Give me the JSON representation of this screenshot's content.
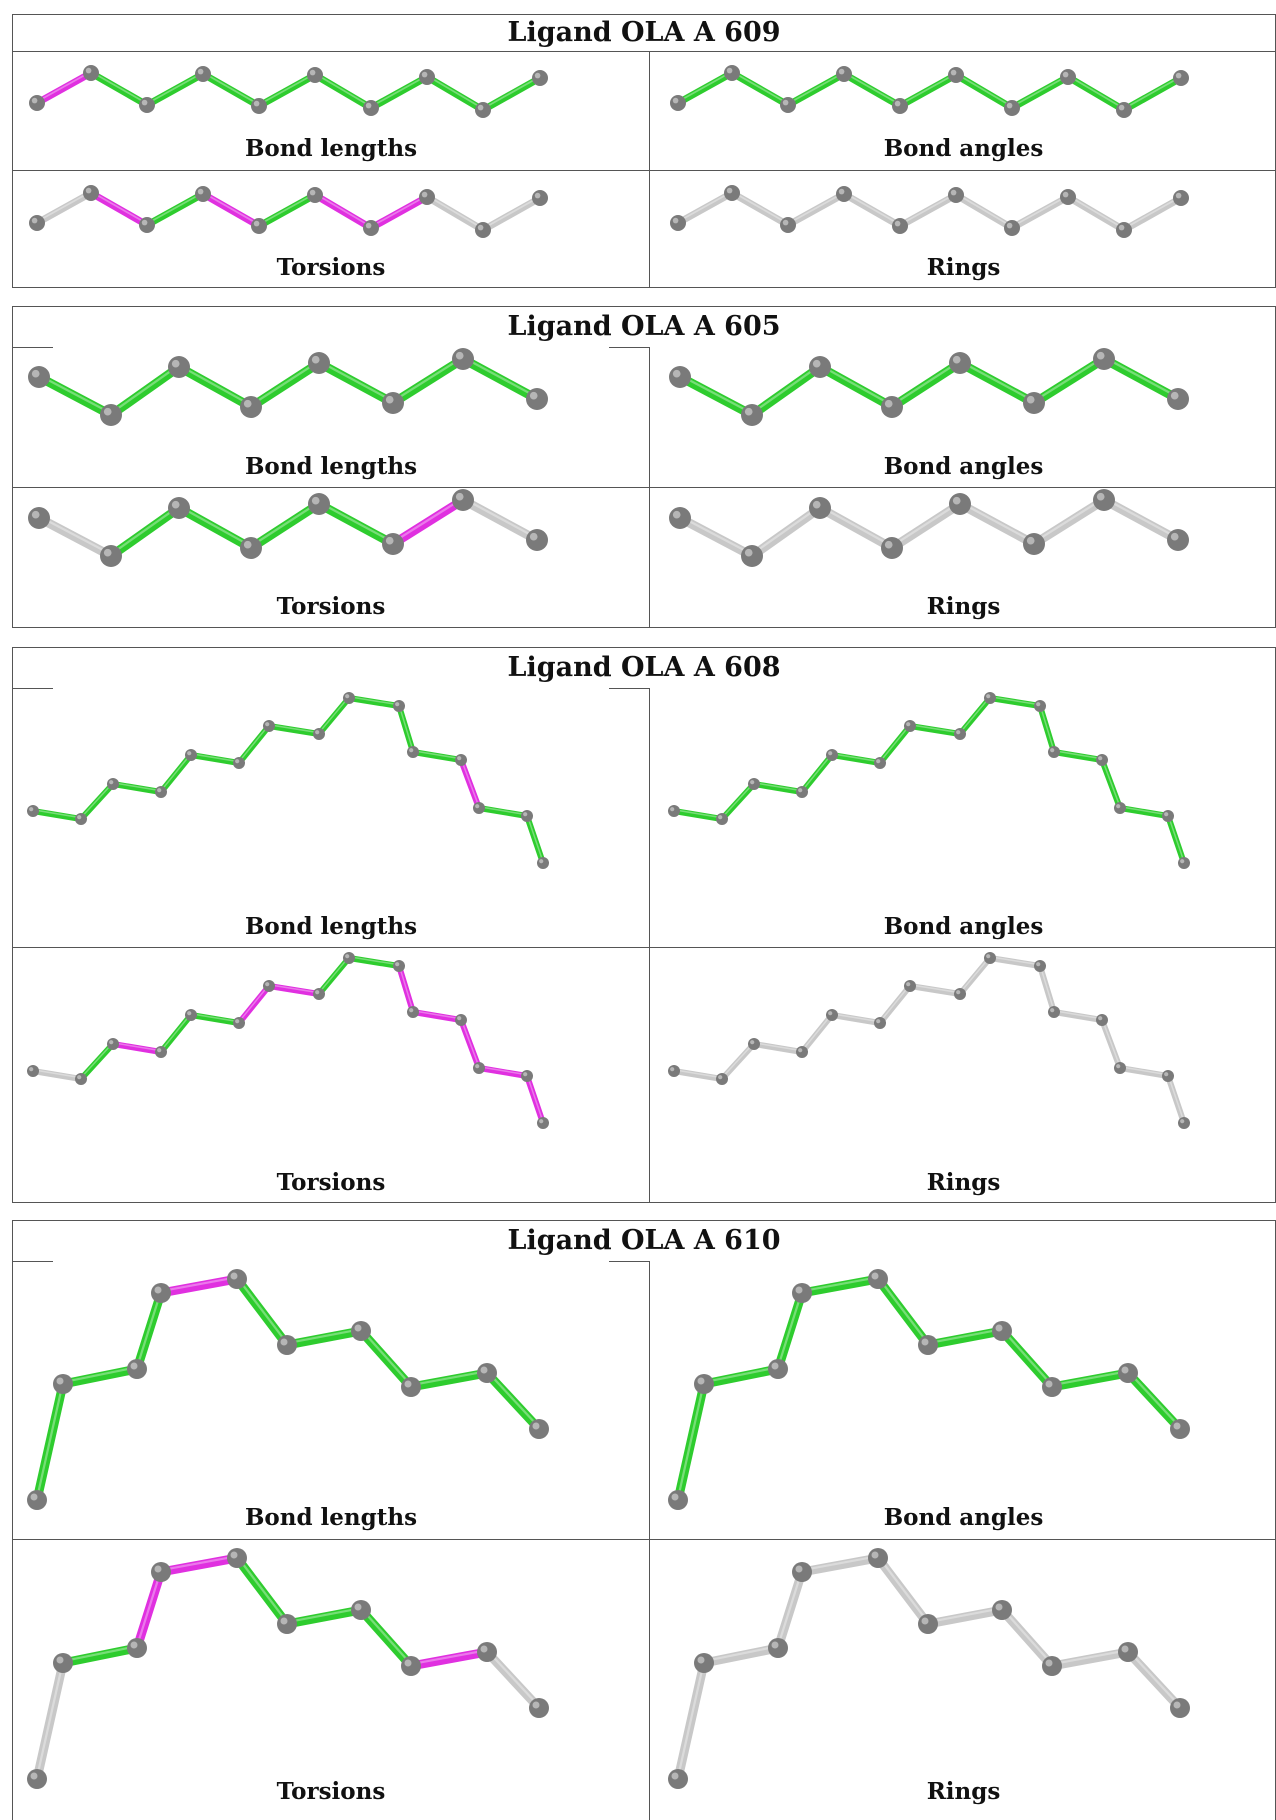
{
  "colors": {
    "ok": "#2ecc2e",
    "outlier": "#e030e0",
    "neutral": "#c8c8c8",
    "atom": "#7a7a7a",
    "border": "#555555"
  },
  "ligands": [
    {
      "title": "Ligand OLA A 609",
      "panels": {
        "bond_lengths": {
          "label": "Bond lengths",
          "bonds": [
            "outlier",
            "ok",
            "ok",
            "ok",
            "ok",
            "ok",
            "ok",
            "ok",
            "ok"
          ]
        },
        "bond_angles": {
          "label": "Bond angles",
          "bonds": [
            "ok",
            "ok",
            "ok",
            "ok",
            "ok",
            "ok",
            "ok",
            "ok",
            "ok"
          ]
        },
        "torsions": {
          "label": "Torsions",
          "bonds": [
            "neutral",
            "outlier",
            "ok",
            "outlier",
            "ok",
            "outlier",
            "outlier",
            "neutral",
            "neutral"
          ]
        },
        "rings": {
          "label": "Rings",
          "bonds": [
            "neutral",
            "neutral",
            "neutral",
            "neutral",
            "neutral",
            "neutral",
            "neutral",
            "neutral",
            "neutral"
          ]
        }
      }
    },
    {
      "title": "Ligand OLA A 605",
      "panels": {
        "bond_lengths": {
          "label": "Bond lengths",
          "bonds": [
            "ok",
            "ok",
            "ok",
            "ok",
            "ok",
            "ok",
            "ok"
          ]
        },
        "bond_angles": {
          "label": "Bond angles",
          "bonds": [
            "ok",
            "ok",
            "ok",
            "ok",
            "ok",
            "ok",
            "ok"
          ]
        },
        "torsions": {
          "label": "Torsions",
          "bonds": [
            "neutral",
            "ok",
            "ok",
            "ok",
            "ok",
            "outlier",
            "neutral"
          ]
        },
        "rings": {
          "label": "Rings",
          "bonds": [
            "neutral",
            "neutral",
            "neutral",
            "neutral",
            "neutral",
            "neutral",
            "neutral"
          ]
        }
      }
    },
    {
      "title": "Ligand OLA A 608",
      "panels": {
        "bond_lengths": {
          "label": "Bond lengths",
          "bonds": [
            "ok",
            "ok",
            "ok",
            "ok",
            "ok",
            "ok",
            "ok",
            "ok",
            "ok",
            "ok",
            "ok",
            "outlier",
            "ok",
            "ok",
            "ok",
            "ok",
            "ok",
            "ok",
            "ok"
          ]
        },
        "bond_angles": {
          "label": "Bond angles",
          "bonds": [
            "ok",
            "ok",
            "ok",
            "ok",
            "ok",
            "ok",
            "ok",
            "ok",
            "ok",
            "ok",
            "ok",
            "ok",
            "ok",
            "ok",
            "ok",
            "ok",
            "ok",
            "ok",
            "ok"
          ]
        },
        "torsions": {
          "label": "Torsions",
          "bonds": [
            "neutral",
            "ok",
            "outlier",
            "ok",
            "ok",
            "outlier",
            "outlier",
            "ok",
            "ok",
            "outlier",
            "outlier",
            "outlier",
            "outlier",
            "outlier",
            "outlier",
            "outlier",
            "outlier",
            "outlier",
            "neutral"
          ]
        },
        "rings": {
          "label": "Rings",
          "bonds": [
            "neutral",
            "neutral",
            "neutral",
            "neutral",
            "neutral",
            "neutral",
            "neutral",
            "neutral",
            "neutral",
            "neutral",
            "neutral",
            "neutral",
            "neutral",
            "neutral",
            "neutral",
            "neutral",
            "neutral",
            "neutral",
            "neutral"
          ]
        }
      }
    },
    {
      "title": "Ligand OLA A 610",
      "panels": {
        "bond_lengths": {
          "label": "Bond lengths",
          "bonds": [
            "ok",
            "ok",
            "ok",
            "outlier",
            "ok",
            "ok",
            "ok",
            "ok",
            "ok",
            "ok"
          ]
        },
        "bond_angles": {
          "label": "Bond angles",
          "bonds": [
            "ok",
            "ok",
            "ok",
            "ok",
            "ok",
            "ok",
            "ok",
            "ok",
            "ok",
            "ok"
          ]
        },
        "torsions": {
          "label": "Torsions",
          "bonds": [
            "neutral",
            "ok",
            "outlier",
            "outlier",
            "ok",
            "ok",
            "ok",
            "outlier",
            "neutral",
            "neutral"
          ]
        },
        "rings": {
          "label": "Rings",
          "bonds": [
            "neutral",
            "neutral",
            "neutral",
            "neutral",
            "neutral",
            "neutral",
            "neutral",
            "neutral",
            "neutral",
            "neutral"
          ]
        }
      }
    }
  ]
}
